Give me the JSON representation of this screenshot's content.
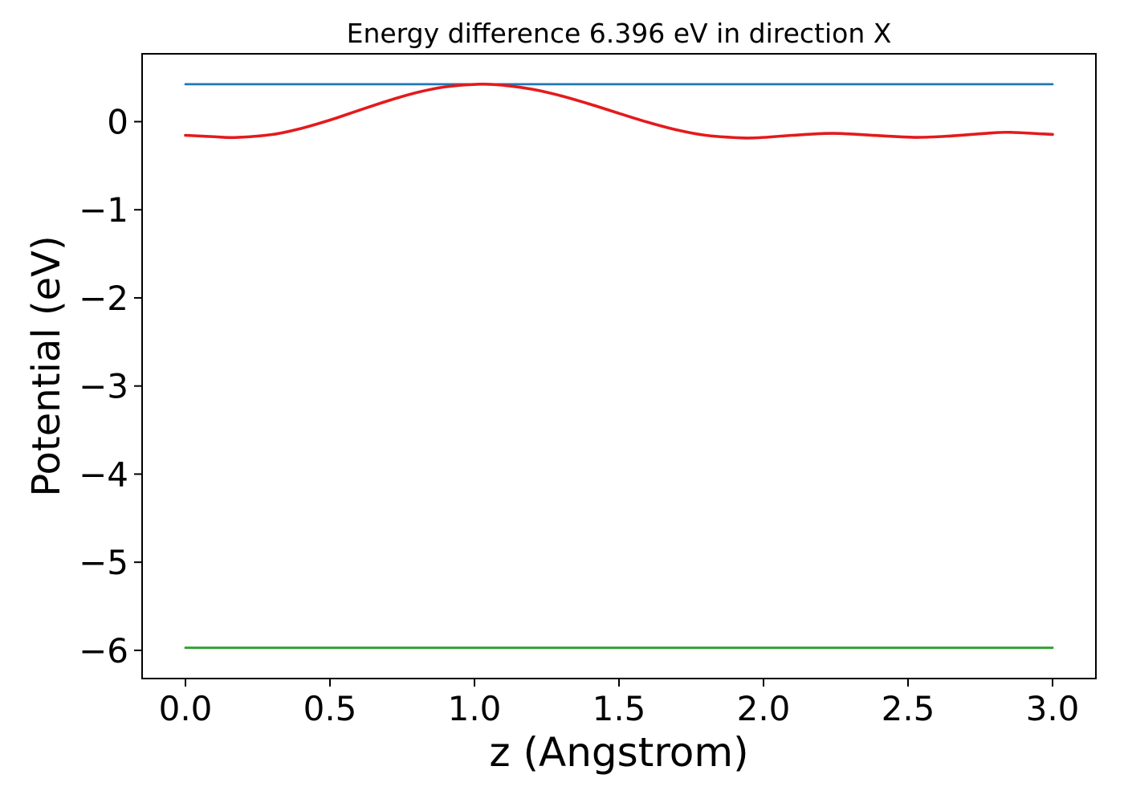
{
  "chart_data": {
    "type": "line",
    "title": "Energy difference 6.396 eV in direction X",
    "xlabel": "z (Angstrom)",
    "ylabel": "Potential (eV)",
    "xlim": [
      -0.15,
      3.15
    ],
    "ylim": [
      -6.32,
      0.77
    ],
    "grid": false,
    "legend": "none",
    "energy_difference_eV": 6.396,
    "direction": "X",
    "x_ticks": [
      0.0,
      0.5,
      1.0,
      1.5,
      2.0,
      2.5,
      3.0
    ],
    "x_tick_labels": [
      "0.0",
      "0.5",
      "1.0",
      "1.5",
      "2.0",
      "2.5",
      "3.0"
    ],
    "y_ticks": [
      0,
      -1,
      -2,
      -3,
      -4,
      -5,
      -6
    ],
    "y_tick_labels": [
      "0",
      "−1",
      "−2",
      "−3",
      "−4",
      "−5",
      "−6"
    ],
    "axis_color": "#000000",
    "series": [
      {
        "name": "upper-energy-level",
        "type": "hline",
        "value": 0.425,
        "x_range": [
          0.0,
          3.0
        ],
        "color": "#1f77b4",
        "width": 2.8
      },
      {
        "name": "potential-curve",
        "type": "curve",
        "color": "#e41a1c",
        "width": 3.6,
        "points": [
          [
            0.0,
            -0.155
          ],
          [
            0.1,
            -0.171
          ],
          [
            0.17,
            -0.18
          ],
          [
            0.3,
            -0.146
          ],
          [
            0.4,
            -0.077
          ],
          [
            0.5,
            0.018
          ],
          [
            0.6,
            0.128
          ],
          [
            0.7,
            0.236
          ],
          [
            0.8,
            0.33
          ],
          [
            0.9,
            0.395
          ],
          [
            1.02,
            0.425
          ],
          [
            1.1,
            0.413
          ],
          [
            1.2,
            0.368
          ],
          [
            1.3,
            0.293
          ],
          [
            1.4,
            0.198
          ],
          [
            1.5,
            0.094
          ],
          [
            1.6,
            -0.007
          ],
          [
            1.7,
            -0.094
          ],
          [
            1.8,
            -0.155
          ],
          [
            1.93,
            -0.185
          ],
          [
            2.0,
            -0.179
          ],
          [
            2.1,
            -0.155
          ],
          [
            2.24,
            -0.133
          ],
          [
            2.4,
            -0.159
          ],
          [
            2.53,
            -0.178
          ],
          [
            2.65,
            -0.162
          ],
          [
            2.8,
            -0.126
          ],
          [
            2.86,
            -0.122
          ],
          [
            3.0,
            -0.145
          ]
        ]
      },
      {
        "name": "lower-energy-level",
        "type": "hline",
        "value": -5.971,
        "x_range": [
          0.0,
          3.0
        ],
        "color": "#2ca02c",
        "width": 2.8
      }
    ]
  }
}
